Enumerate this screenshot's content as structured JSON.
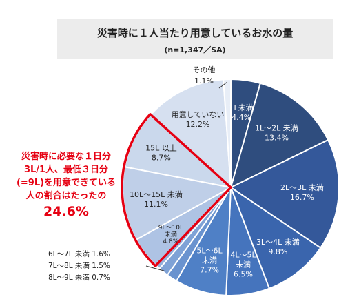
{
  "header": {
    "title": "災害時に１人当たり用意しているお水の量",
    "subtitle": "(n=1,347／SA)"
  },
  "callout": {
    "lines": [
      "災害時に必要な１日分",
      "3L/1人、最低３日分",
      "(=9L)を用意できている",
      "人の割合はたったの"
    ],
    "value": "24.6%"
  },
  "small_notes": [
    "6L～7L 未満 1.6%",
    "7L～8L 未満 1.5%",
    "8L～9L 未満 0.7%"
  ],
  "chart_data": {
    "type": "pie",
    "start": "12 o'clock",
    "direction": "clockwise",
    "slices": [
      {
        "label": "1L未満",
        "value": 4.4,
        "value_label": "4.4%",
        "color": "#2f4d7e"
      },
      {
        "label": "1L～2L 未満",
        "value": 13.4,
        "value_label": "13.4%",
        "color": "#2f4d7e"
      },
      {
        "label": "2L～3L 未満",
        "value": 16.7,
        "value_label": "16.7%",
        "color": "#34589a"
      },
      {
        "label": "3L～4L 未満",
        "value": 9.8,
        "value_label": "9.8%",
        "color": "#3a65ad"
      },
      {
        "label": "4L～5L 未満",
        "value": 6.5,
        "value_label": "6.5%",
        "color": "#4574bd"
      },
      {
        "label": "5L～6L 未満",
        "value": 7.7,
        "value_label": "7.7%",
        "color": "#4f80c6"
      },
      {
        "label": "6L～7L 未満",
        "value": 1.6,
        "value_label": "1.6%",
        "color": "#6a93cf"
      },
      {
        "label": "7L～8L 未満",
        "value": 1.5,
        "value_label": "1.5%",
        "color": "#7fa2d6"
      },
      {
        "label": "8L～9L 未満",
        "value": 0.7,
        "value_label": "0.7%",
        "color": "#95b1dc"
      },
      {
        "label": "9L～10L 未満",
        "value": 4.8,
        "value_label": "4.8%",
        "color": "#aec3e4"
      },
      {
        "label": "10L～15L 未満",
        "value": 11.1,
        "value_label": "11.1%",
        "color": "#bfcfe8"
      },
      {
        "label": "15L 以上",
        "value": 8.7,
        "value_label": "8.7%",
        "color": "#cad8ec"
      },
      {
        "label": "用意していない",
        "value": 12.2,
        "value_label": "12.2%",
        "color": "#d6e0f0"
      },
      {
        "label": "その他",
        "value": 1.1,
        "value_label": "1.1%",
        "color": "#e8eef7"
      }
    ],
    "highlight": {
      "from": "9L～10L 未満",
      "to": "15L 以上",
      "total_label": "24.6%",
      "color": "#e60012"
    }
  }
}
